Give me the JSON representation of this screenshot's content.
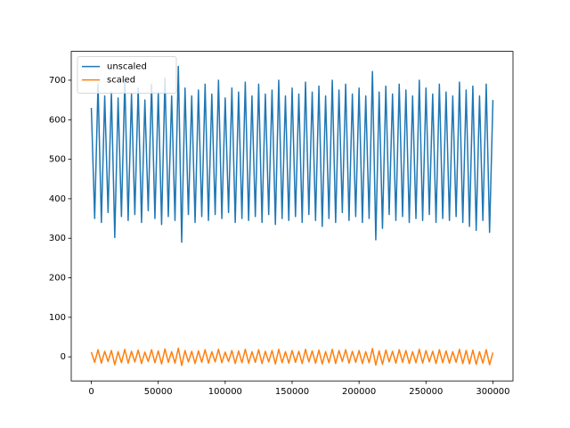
{
  "chart_data": {
    "type": "line",
    "x": [
      0,
      2500,
      5000,
      7500,
      10000,
      12500,
      15000,
      17500,
      20000,
      22500,
      25000,
      27500,
      30000,
      32500,
      35000,
      37500,
      40000,
      42500,
      45000,
      47500,
      50000,
      52500,
      55000,
      57500,
      60000,
      62500,
      65000,
      67500,
      70000,
      72500,
      75000,
      77500,
      80000,
      82500,
      85000,
      87500,
      90000,
      92500,
      95000,
      97500,
      100000,
      102500,
      105000,
      107500,
      110000,
      112500,
      115000,
      117500,
      120000,
      122500,
      125000,
      127500,
      130000,
      132500,
      135000,
      137500,
      140000,
      142500,
      145000,
      147500,
      150000,
      152500,
      155000,
      157500,
      160000,
      162500,
      165000,
      167500,
      170000,
      172500,
      175000,
      177500,
      180000,
      182500,
      185000,
      187500,
      190000,
      192500,
      195000,
      197500,
      200000,
      202500,
      205000,
      207500,
      210000,
      212500,
      215000,
      217500,
      220000,
      222500,
      225000,
      227500,
      230000,
      232500,
      235000,
      237500,
      240000,
      242500,
      245000,
      247500,
      250000,
      252500,
      255000,
      257500,
      260000,
      262500,
      265000,
      267500,
      270000,
      272500,
      275000,
      277500,
      280000,
      282500,
      285000,
      287500,
      290000,
      292500,
      295000,
      297500,
      300000
    ],
    "series": [
      {
        "name": "unscaled",
        "color": "#1f77b4",
        "values": [
          630,
          350,
          690,
          340,
          660,
          365,
          670,
          302,
          655,
          355,
          700,
          345,
          665,
          360,
          680,
          340,
          650,
          370,
          690,
          350,
          670,
          335,
          705,
          355,
          660,
          345,
          735,
          290,
          680,
          360,
          660,
          340,
          675,
          355,
          690,
          345,
          665,
          360,
          700,
          350,
          655,
          365,
          680,
          340,
          670,
          350,
          695,
          345,
          660,
          355,
          690,
          340,
          665,
          360,
          675,
          335,
          700,
          350,
          660,
          345,
          680,
          355,
          665,
          340,
          695,
          360,
          670,
          345,
          685,
          330,
          660,
          350,
          700,
          340,
          675,
          365,
          690,
          345,
          665,
          355,
          680,
          340,
          660,
          350,
          722,
          296,
          670,
          325,
          685,
          360,
          665,
          345,
          690,
          355,
          675,
          340,
          660,
          350,
          700,
          345,
          680,
          360,
          665,
          340,
          690,
          350,
          670,
          345,
          660,
          355,
          695,
          340,
          675,
          330,
          685,
          320,
          660,
          345,
          690,
          315,
          650
        ]
      },
      {
        "name": "scaled",
        "color": "#ff7f0e",
        "values": [
          12,
          -14,
          18,
          -16,
          14,
          -12,
          16,
          -20,
          13,
          -15,
          19,
          -16,
          14,
          -13,
          17,
          -17,
          12,
          -12,
          18,
          -15,
          15,
          -18,
          20,
          -14,
          13,
          -16,
          22,
          -22,
          16,
          -13,
          14,
          -17,
          15,
          -14,
          18,
          -16,
          13,
          -13,
          19,
          -15,
          12,
          -12,
          16,
          -17,
          15,
          -15,
          19,
          -16,
          13,
          -14,
          18,
          -17,
          14,
          -13,
          16,
          -18,
          19,
          -15,
          13,
          -16,
          16,
          -14,
          14,
          -17,
          19,
          -13,
          15,
          -16,
          17,
          -18,
          13,
          -15,
          19,
          -17,
          16,
          -12,
          18,
          -16,
          14,
          -14,
          16,
          -17,
          13,
          -15,
          21,
          -21,
          15,
          -19,
          17,
          -13,
          14,
          -16,
          18,
          -14,
          16,
          -17,
          13,
          -15,
          19,
          -16,
          16,
          -13,
          14,
          -17,
          18,
          -15,
          15,
          -16,
          13,
          -14,
          19,
          -17,
          16,
          -18,
          17,
          -19,
          13,
          -16,
          18,
          -20,
          11
        ]
      }
    ],
    "xlim": [
      -15000,
      315000
    ],
    "ylim": [
      -61,
      773
    ],
    "xticks": [
      0,
      50000,
      100000,
      150000,
      200000,
      250000,
      300000
    ],
    "yticks": [
      0,
      100,
      200,
      300,
      400,
      500,
      600,
      700
    ],
    "legend": "upper left"
  }
}
